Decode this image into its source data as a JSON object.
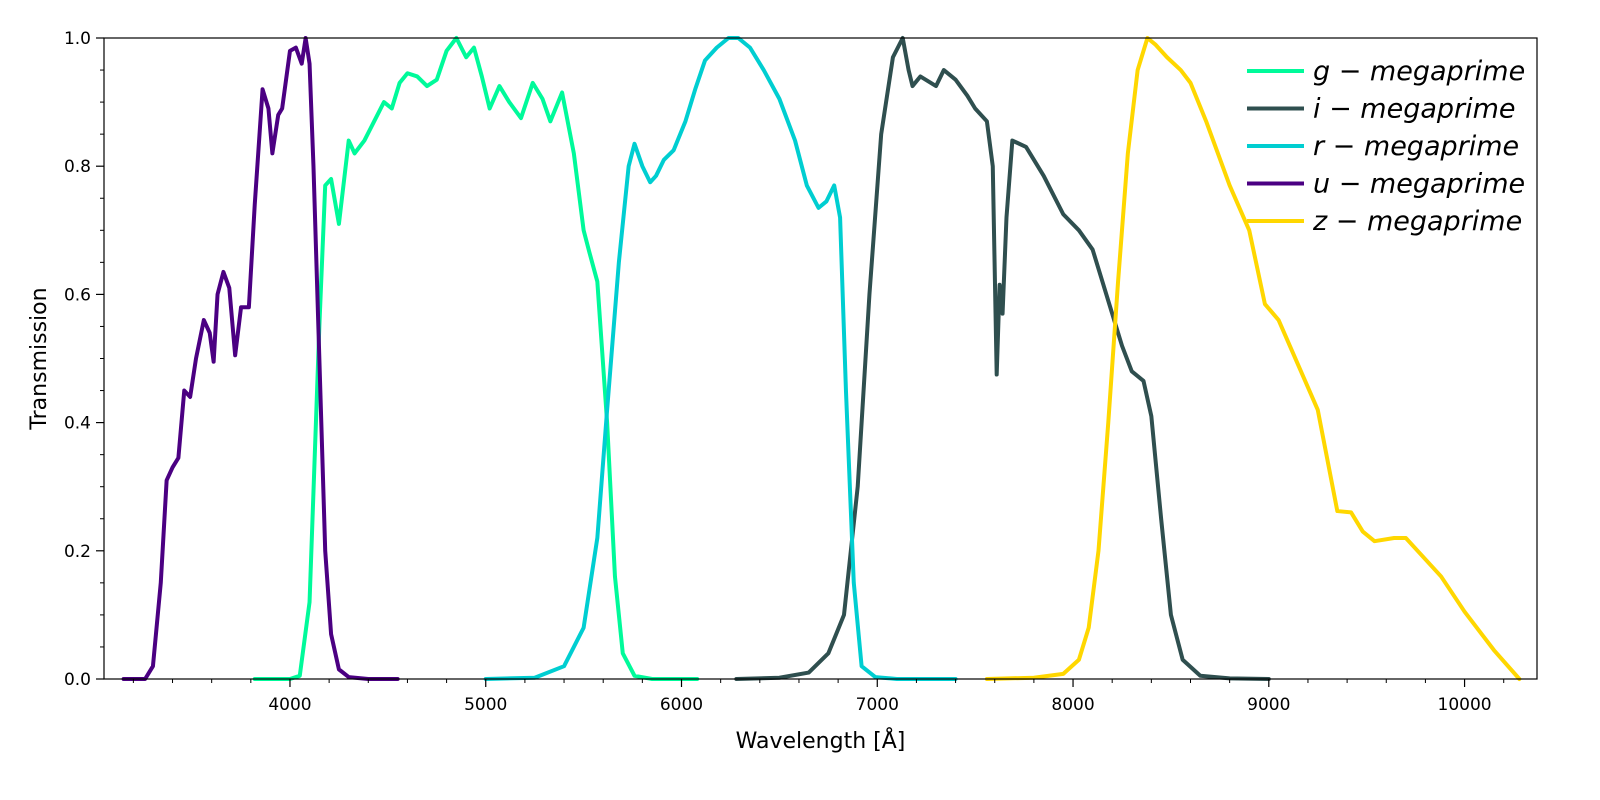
{
  "chart_data": {
    "type": "line",
    "xlabel": "Wavelength [Å]",
    "ylabel": "Transmission",
    "xlim": [
      3050,
      10370
    ],
    "ylim": [
      0.0,
      1.0
    ],
    "x_ticks": [
      4000,
      5000,
      6000,
      7000,
      8000,
      9000,
      10000
    ],
    "x_tick_labels": [
      "4000",
      "5000",
      "6000",
      "7000",
      "8000",
      "9000",
      "10000"
    ],
    "y_ticks": [
      0.0,
      0.2,
      0.4,
      0.6,
      0.8,
      1.0
    ],
    "y_tick_labels": [
      "0.0",
      "0.2",
      "0.4",
      "0.6",
      "0.8",
      "1.0"
    ],
    "grid": false,
    "legend_position": "top-right",
    "series": [
      {
        "name": "g − megaprime",
        "color": "#00FA9A",
        "points": [
          [
            3820,
            0.0
          ],
          [
            4000,
            0.0
          ],
          [
            4050,
            0.005
          ],
          [
            4100,
            0.12
          ],
          [
            4150,
            0.55
          ],
          [
            4180,
            0.77
          ],
          [
            4210,
            0.78
          ],
          [
            4250,
            0.71
          ],
          [
            4300,
            0.84
          ],
          [
            4330,
            0.82
          ],
          [
            4380,
            0.84
          ],
          [
            4430,
            0.87
          ],
          [
            4480,
            0.9
          ],
          [
            4520,
            0.89
          ],
          [
            4560,
            0.93
          ],
          [
            4600,
            0.945
          ],
          [
            4650,
            0.94
          ],
          [
            4700,
            0.925
          ],
          [
            4750,
            0.935
          ],
          [
            4800,
            0.98
          ],
          [
            4850,
            1.0
          ],
          [
            4900,
            0.97
          ],
          [
            4940,
            0.985
          ],
          [
            4980,
            0.94
          ],
          [
            5020,
            0.89
          ],
          [
            5070,
            0.925
          ],
          [
            5120,
            0.9
          ],
          [
            5180,
            0.875
          ],
          [
            5240,
            0.93
          ],
          [
            5290,
            0.905
          ],
          [
            5330,
            0.87
          ],
          [
            5390,
            0.915
          ],
          [
            5450,
            0.82
          ],
          [
            5500,
            0.7
          ],
          [
            5530,
            0.665
          ],
          [
            5570,
            0.62
          ],
          [
            5620,
            0.4
          ],
          [
            5660,
            0.16
          ],
          [
            5700,
            0.04
          ],
          [
            5760,
            0.005
          ],
          [
            5850,
            0.0
          ],
          [
            6080,
            0.0
          ]
        ]
      },
      {
        "name": "i − megaprime",
        "color": "#2F4F4F",
        "points": [
          [
            6280,
            0.0
          ],
          [
            6500,
            0.002
          ],
          [
            6650,
            0.01
          ],
          [
            6750,
            0.04
          ],
          [
            6830,
            0.1
          ],
          [
            6900,
            0.3
          ],
          [
            6960,
            0.6
          ],
          [
            7020,
            0.85
          ],
          [
            7080,
            0.97
          ],
          [
            7130,
            1.0
          ],
          [
            7160,
            0.95
          ],
          [
            7180,
            0.925
          ],
          [
            7220,
            0.94
          ],
          [
            7300,
            0.925
          ],
          [
            7340,
            0.95
          ],
          [
            7400,
            0.935
          ],
          [
            7460,
            0.91
          ],
          [
            7500,
            0.89
          ],
          [
            7560,
            0.87
          ],
          [
            7590,
            0.8
          ],
          [
            7610,
            0.475
          ],
          [
            7625,
            0.615
          ],
          [
            7640,
            0.57
          ],
          [
            7660,
            0.72
          ],
          [
            7690,
            0.84
          ],
          [
            7760,
            0.83
          ],
          [
            7850,
            0.785
          ],
          [
            7950,
            0.725
          ],
          [
            8030,
            0.7
          ],
          [
            8100,
            0.67
          ],
          [
            8150,
            0.62
          ],
          [
            8200,
            0.57
          ],
          [
            8250,
            0.52
          ],
          [
            8300,
            0.48
          ],
          [
            8360,
            0.465
          ],
          [
            8400,
            0.41
          ],
          [
            8450,
            0.25
          ],
          [
            8500,
            0.1
          ],
          [
            8560,
            0.03
          ],
          [
            8650,
            0.005
          ],
          [
            8800,
            0.001
          ],
          [
            9000,
            0.0
          ]
        ]
      },
      {
        "name": "r − megaprime",
        "color": "#00CED1",
        "points": [
          [
            5000,
            0.0
          ],
          [
            5250,
            0.002
          ],
          [
            5400,
            0.02
          ],
          [
            5500,
            0.08
          ],
          [
            5570,
            0.22
          ],
          [
            5620,
            0.42
          ],
          [
            5680,
            0.65
          ],
          [
            5730,
            0.8
          ],
          [
            5760,
            0.835
          ],
          [
            5800,
            0.8
          ],
          [
            5840,
            0.775
          ],
          [
            5870,
            0.785
          ],
          [
            5910,
            0.81
          ],
          [
            5960,
            0.825
          ],
          [
            6020,
            0.87
          ],
          [
            6070,
            0.92
          ],
          [
            6120,
            0.965
          ],
          [
            6180,
            0.985
          ],
          [
            6240,
            1.0
          ],
          [
            6290,
            1.0
          ],
          [
            6350,
            0.985
          ],
          [
            6420,
            0.95
          ],
          [
            6500,
            0.905
          ],
          [
            6580,
            0.84
          ],
          [
            6640,
            0.77
          ],
          [
            6700,
            0.735
          ],
          [
            6740,
            0.745
          ],
          [
            6780,
            0.77
          ],
          [
            6810,
            0.72
          ],
          [
            6840,
            0.45
          ],
          [
            6880,
            0.15
          ],
          [
            6920,
            0.02
          ],
          [
            6990,
            0.003
          ],
          [
            7100,
            0.0
          ],
          [
            7400,
            0.0
          ]
        ]
      },
      {
        "name": "u − megaprime",
        "color": "#4B0082",
        "points": [
          [
            3150,
            0.0
          ],
          [
            3260,
            0.0
          ],
          [
            3300,
            0.02
          ],
          [
            3340,
            0.15
          ],
          [
            3370,
            0.31
          ],
          [
            3400,
            0.33
          ],
          [
            3430,
            0.345
          ],
          [
            3460,
            0.45
          ],
          [
            3490,
            0.44
          ],
          [
            3520,
            0.5
          ],
          [
            3560,
            0.56
          ],
          [
            3590,
            0.54
          ],
          [
            3610,
            0.495
          ],
          [
            3630,
            0.6
          ],
          [
            3660,
            0.635
          ],
          [
            3690,
            0.61
          ],
          [
            3720,
            0.505
          ],
          [
            3750,
            0.58
          ],
          [
            3790,
            0.58
          ],
          [
            3820,
            0.74
          ],
          [
            3860,
            0.92
          ],
          [
            3890,
            0.89
          ],
          [
            3910,
            0.82
          ],
          [
            3940,
            0.88
          ],
          [
            3960,
            0.89
          ],
          [
            4000,
            0.98
          ],
          [
            4030,
            0.985
          ],
          [
            4060,
            0.96
          ],
          [
            4080,
            1.0
          ],
          [
            4100,
            0.96
          ],
          [
            4120,
            0.8
          ],
          [
            4150,
            0.5
          ],
          [
            4180,
            0.2
          ],
          [
            4210,
            0.07
          ],
          [
            4250,
            0.015
          ],
          [
            4300,
            0.003
          ],
          [
            4400,
            0.0
          ],
          [
            4550,
            0.0
          ]
        ]
      },
      {
        "name": "z − megaprime",
        "color": "#FFD700",
        "points": [
          [
            7560,
            0.0
          ],
          [
            7800,
            0.002
          ],
          [
            7950,
            0.008
          ],
          [
            8030,
            0.03
          ],
          [
            8080,
            0.08
          ],
          [
            8130,
            0.2
          ],
          [
            8180,
            0.4
          ],
          [
            8230,
            0.62
          ],
          [
            8280,
            0.82
          ],
          [
            8330,
            0.95
          ],
          [
            8380,
            1.0
          ],
          [
            8420,
            0.99
          ],
          [
            8480,
            0.97
          ],
          [
            8550,
            0.95
          ],
          [
            8600,
            0.93
          ],
          [
            8680,
            0.87
          ],
          [
            8800,
            0.77
          ],
          [
            8900,
            0.7
          ],
          [
            8980,
            0.585
          ],
          [
            9050,
            0.56
          ],
          [
            9150,
            0.49
          ],
          [
            9250,
            0.42
          ],
          [
            9350,
            0.262
          ],
          [
            9420,
            0.26
          ],
          [
            9480,
            0.23
          ],
          [
            9540,
            0.215
          ],
          [
            9640,
            0.22
          ],
          [
            9700,
            0.22
          ],
          [
            9760,
            0.2
          ],
          [
            9880,
            0.16
          ],
          [
            10000,
            0.105
          ],
          [
            10150,
            0.045
          ],
          [
            10280,
            0.0
          ]
        ]
      }
    ]
  }
}
